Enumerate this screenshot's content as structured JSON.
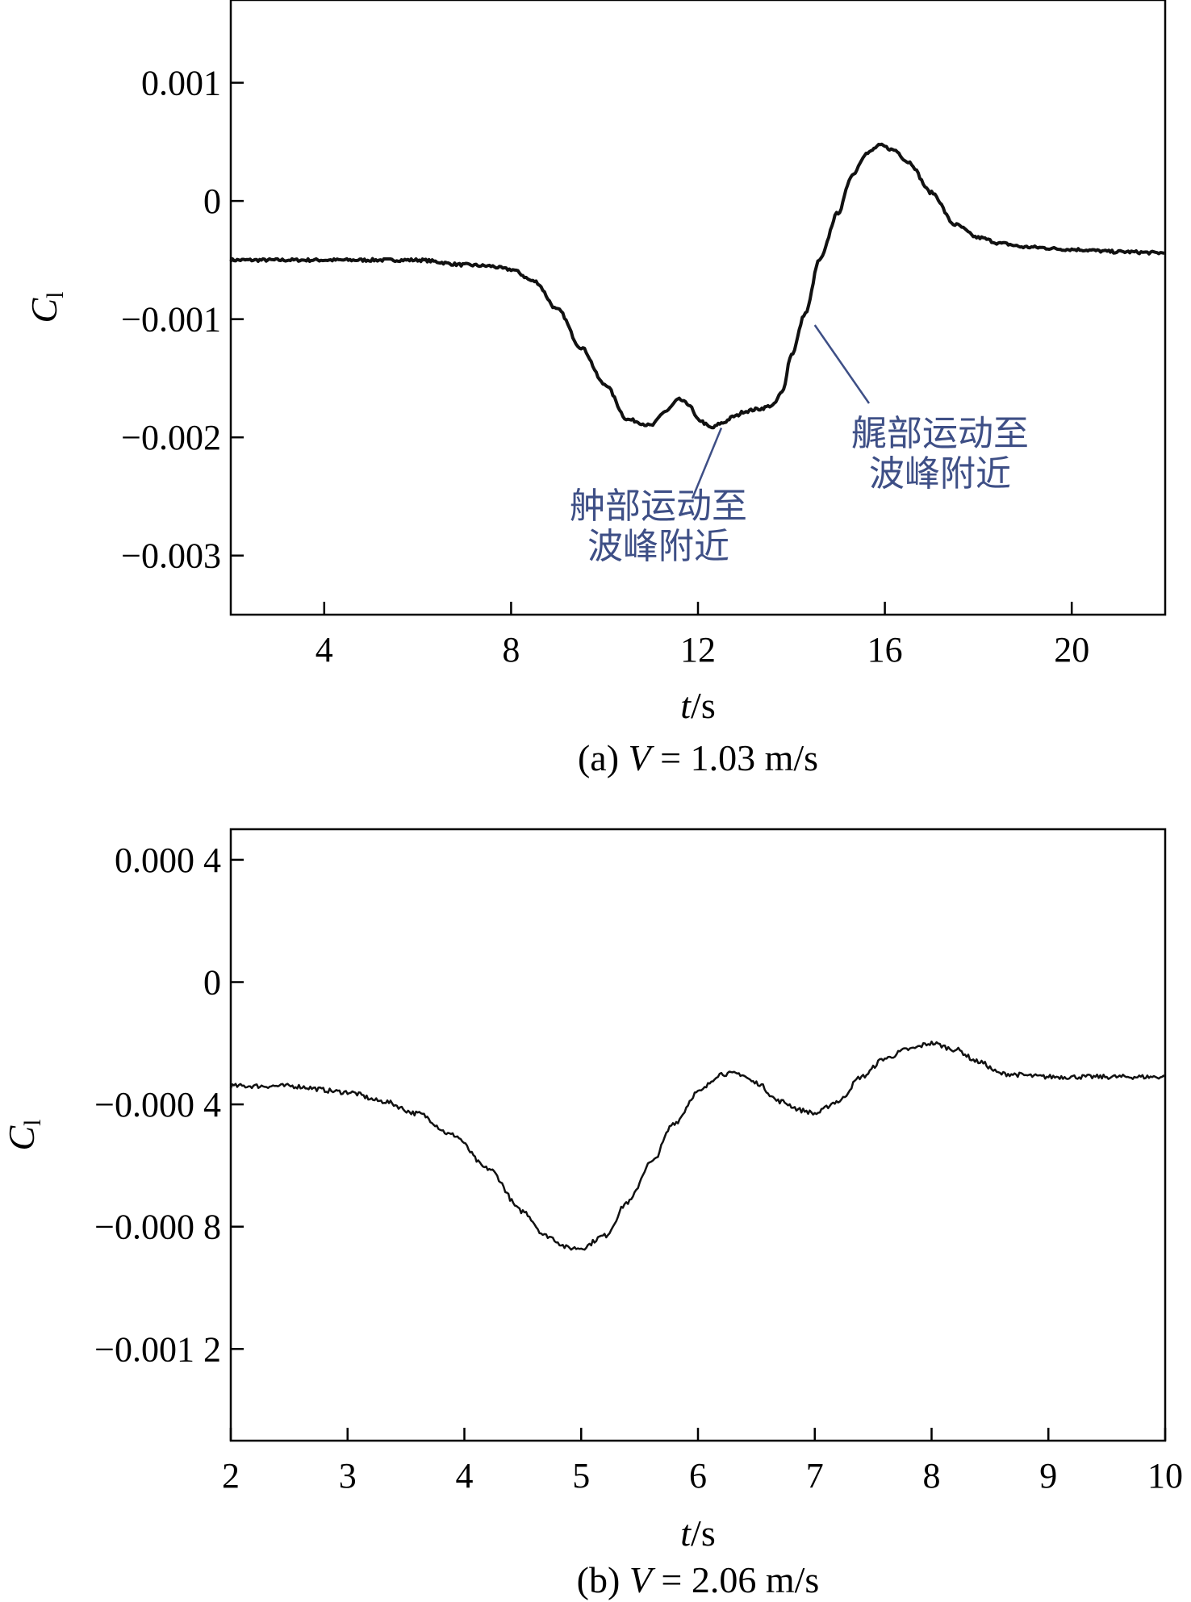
{
  "chart_data": [
    {
      "type": "line",
      "caption": {
        "prefix": "(a) ",
        "var": "V",
        "rest": " = 1.03 m/s"
      },
      "xlabel": {
        "var": "t",
        "rest": "/s"
      },
      "ylabel": {
        "var": "C",
        "sub": "l"
      },
      "xlim": [
        2,
        22
      ],
      "ylim": [
        -0.0035,
        0.0017
      ],
      "xticks": [
        4,
        8,
        12,
        16,
        20
      ],
      "xtick_labels": [
        "4",
        "8",
        "12",
        "16",
        "20"
      ],
      "yticks": [
        0.001,
        0,
        -0.001,
        -0.002,
        -0.003
      ],
      "ytick_labels": [
        "0.001",
        "0",
        "−0.001",
        "−0.002",
        "−0.003"
      ],
      "series": [
        {
          "color": "#111111",
          "x": [
            2,
            3,
            4,
            5,
            6,
            7,
            7.5,
            8,
            8.5,
            9,
            9.5,
            10,
            10.5,
            11,
            11.3,
            11.6,
            11.8,
            12,
            12.3,
            12.5,
            12.8,
            13,
            13.3,
            13.6,
            13.8,
            14,
            14.3,
            14.6,
            15,
            15.3,
            15.6,
            15.9,
            16.2,
            16.5,
            17,
            17.5,
            18,
            18.5,
            19,
            20,
            21,
            22
          ],
          "y": [
            -0.0005,
            -0.0005,
            -0.0005,
            -0.0005,
            -0.0005,
            -0.00054,
            -0.00055,
            -0.00058,
            -0.00068,
            -0.00092,
            -0.00124,
            -0.00155,
            -0.00185,
            -0.0019,
            -0.00178,
            -0.00168,
            -0.00172,
            -0.00185,
            -0.00192,
            -0.00188,
            -0.00182,
            -0.00178,
            -0.00176,
            -0.00173,
            -0.00162,
            -0.0013,
            -0.00095,
            -0.0005,
            -0.0001,
            0.00022,
            0.0004,
            0.00047,
            0.00043,
            0.00033,
            7e-05,
            -0.0002,
            -0.00031,
            -0.00036,
            -0.00039,
            -0.00041,
            -0.00043,
            -0.00044
          ]
        }
      ],
      "annotations": [
        {
          "lines": [
            "舯部运动至",
            "波峰附近"
          ],
          "point": [
            12.5,
            -0.00192
          ]
        },
        {
          "lines": [
            "艉部运动至",
            "波峰附近"
          ],
          "point": [
            14.5,
            -0.00105
          ]
        }
      ]
    },
    {
      "type": "line",
      "caption": {
        "prefix": "(b) ",
        "var": "V",
        "rest": " = 2.06 m/s"
      },
      "xlabel": {
        "var": "t",
        "rest": "/s"
      },
      "ylabel": {
        "var": "C",
        "sub": "l"
      },
      "xlim": [
        2,
        10
      ],
      "ylim": [
        -0.0015,
        0.0005
      ],
      "xticks": [
        2,
        3,
        4,
        5,
        6,
        7,
        8,
        9,
        10
      ],
      "xtick_labels": [
        "2",
        "3",
        "4",
        "5",
        "6",
        "7",
        "8",
        "9",
        "10"
      ],
      "yticks": [
        0.0004,
        0,
        -0.0004,
        -0.0008,
        -0.0012
      ],
      "ytick_labels": [
        "0.000 4",
        "0",
        "−0.000 4",
        "−0.000 8",
        "−0.001 2"
      ],
      "series": [
        {
          "color": "#111111",
          "x": [
            2,
            2.5,
            3,
            3.3,
            3.6,
            3.9,
            4.2,
            4.5,
            4.7,
            4.9,
            5,
            5.2,
            5.4,
            5.6,
            5.8,
            6,
            6.2,
            6.35,
            6.5,
            6.7,
            6.9,
            7,
            7.2,
            7.4,
            7.6,
            7.8,
            8,
            8.2,
            8.4,
            8.6,
            9,
            9.5,
            10
          ],
          "y": [
            -0.00034,
            -0.00034,
            -0.00036,
            -0.00039,
            -0.00043,
            -0.0005,
            -0.00061,
            -0.00075,
            -0.00083,
            -0.00087,
            -0.00087,
            -0.00083,
            -0.00072,
            -0.00059,
            -0.00046,
            -0.00036,
            -0.0003,
            -0.0003,
            -0.00033,
            -0.00039,
            -0.00042,
            -0.00043,
            -0.00039,
            -0.00031,
            -0.00025,
            -0.00022,
            -0.0002,
            -0.00022,
            -0.00026,
            -0.0003,
            -0.00031,
            -0.00031,
            -0.00031
          ]
        }
      ]
    }
  ]
}
